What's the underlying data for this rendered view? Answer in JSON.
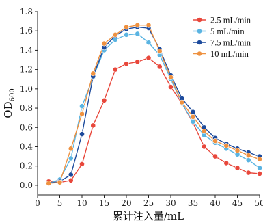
{
  "chart_data": {
    "type": "line",
    "xlabel": "累计注入量/mL",
    "ylabel": "OD",
    "ylabel_sub": "600",
    "xlim": [
      0,
      50
    ],
    "ylim": [
      -0.1,
      1.8
    ],
    "xticks": [
      0,
      5,
      10,
      15,
      20,
      25,
      30,
      35,
      40,
      45,
      50
    ],
    "yticks": [
      0.0,
      0.2,
      0.4,
      0.6,
      0.8,
      1.0,
      1.2,
      1.4,
      1.6,
      1.8
    ],
    "ytick_labels": [
      "0.0",
      "0.2",
      "0.4",
      "0.6",
      "0.8",
      "1.0",
      "1.2",
      "1.4",
      "1.6",
      "1.8"
    ],
    "grid": false,
    "legend_position": "top-right",
    "x": [
      2.5,
      5,
      7.5,
      10,
      12.5,
      15,
      17.5,
      20,
      22.5,
      25,
      27.5,
      30,
      32.5,
      35,
      37.5,
      40,
      42.5,
      45,
      47.5,
      50
    ],
    "series": [
      {
        "name": "2.5 mL/min",
        "color": "#e8473b",
        "values": [
          0.04,
          0.03,
          0.05,
          0.22,
          0.62,
          0.88,
          1.2,
          1.26,
          1.28,
          1.32,
          1.23,
          1.02,
          0.85,
          0.65,
          0.4,
          0.3,
          0.23,
          0.18,
          0.13,
          0.12
        ]
      },
      {
        "name": "5 mL/min",
        "color": "#5ab4e2",
        "values": [
          0.02,
          0.06,
          0.28,
          0.82,
          1.12,
          1.4,
          1.51,
          1.56,
          1.57,
          1.48,
          1.35,
          1.1,
          0.85,
          0.66,
          0.52,
          0.44,
          0.38,
          0.32,
          0.26,
          0.18
        ]
      },
      {
        "name": "7.5 mL/min",
        "color": "#1c4a9c",
        "values": [
          0.02,
          0.04,
          0.11,
          0.53,
          1.13,
          1.43,
          1.55,
          1.62,
          1.64,
          1.63,
          1.41,
          1.14,
          0.9,
          0.76,
          0.6,
          0.49,
          0.43,
          0.38,
          0.34,
          0.3
        ]
      },
      {
        "name": "10 mL/min",
        "color": "#ee9140",
        "values": [
          0.02,
          0.03,
          0.38,
          0.74,
          1.16,
          1.47,
          1.56,
          1.64,
          1.66,
          1.66,
          1.39,
          1.12,
          0.86,
          0.71,
          0.56,
          0.46,
          0.41,
          0.36,
          0.31,
          0.27
        ]
      }
    ]
  }
}
